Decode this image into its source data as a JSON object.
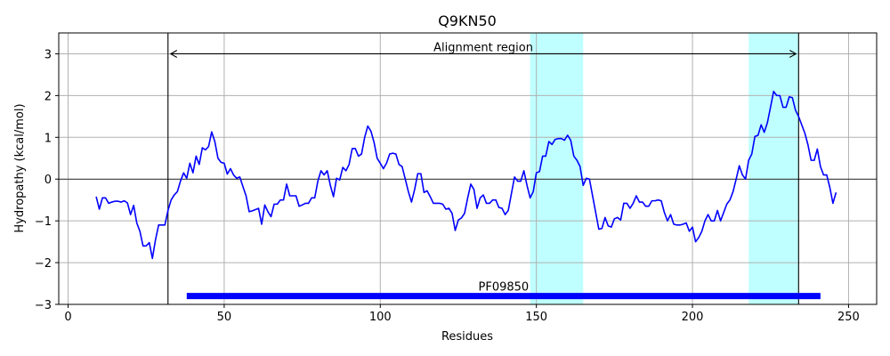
{
  "chart_data": {
    "type": "line",
    "title": "Q9KN50",
    "xlabel": "Residues",
    "ylabel": "Hydropathy (kcal/mol)",
    "xlim": [
      -3,
      259
    ],
    "ylim": [
      -3,
      3.5
    ],
    "xticks": [
      0,
      50,
      100,
      150,
      200,
      250
    ],
    "yticks": [
      -3,
      -2,
      -1,
      0,
      1,
      2,
      3
    ],
    "xtick_labels": [
      "0",
      "50",
      "100",
      "150",
      "200",
      "250"
    ],
    "ytick_labels": [
      "−3",
      "−2",
      "−1",
      "0",
      "1",
      "2",
      "3"
    ],
    "grid": true,
    "zero_line": 0,
    "series": [
      {
        "color": "#0000ff",
        "x": [
          9,
          10,
          11,
          12,
          13,
          14,
          15,
          16,
          17,
          18,
          19,
          20,
          21,
          22,
          23,
          24,
          25,
          26,
          27,
          28,
          29,
          30,
          31,
          32,
          33,
          34,
          35,
          36,
          37,
          38,
          39,
          40,
          41,
          42,
          43,
          44,
          45,
          46,
          47,
          48,
          49,
          50,
          51,
          52,
          53,
          54,
          55,
          56,
          57,
          58,
          59,
          60,
          61,
          62,
          63,
          64,
          65,
          66,
          67,
          68,
          69,
          70,
          71,
          72,
          73,
          74,
          75,
          76,
          77,
          78,
          79,
          80,
          81,
          82,
          83,
          84,
          85,
          86,
          87,
          88,
          89,
          90,
          91,
          92,
          93,
          94,
          95,
          96,
          97,
          98,
          99,
          100,
          101,
          102,
          103,
          104,
          105,
          106,
          107,
          108,
          109,
          110,
          111,
          112,
          113,
          114,
          115,
          116,
          117,
          118,
          119,
          120,
          121,
          122,
          123,
          124,
          125,
          126,
          127,
          128,
          129,
          130,
          131,
          132,
          133,
          134,
          135,
          136,
          137,
          138,
          139,
          140,
          141,
          142,
          143,
          144,
          145,
          146,
          147,
          148,
          149,
          150,
          151,
          152,
          153,
          154,
          155,
          156,
          157,
          158,
          159,
          160,
          161,
          162,
          163,
          164,
          165,
          166,
          167,
          168,
          169,
          170,
          171,
          172,
          173,
          174,
          175,
          176,
          177,
          178,
          179,
          180,
          181,
          182,
          183,
          184,
          185,
          186,
          187,
          188,
          189,
          190,
          191,
          192,
          193,
          194,
          195,
          196,
          197,
          198,
          199,
          200,
          201,
          202,
          203,
          204,
          205,
          206,
          207,
          208,
          209,
          210,
          211,
          212,
          213,
          214,
          215,
          216,
          217,
          218,
          219,
          220,
          221,
          222,
          223,
          224,
          225,
          226,
          227,
          228,
          229,
          230,
          231,
          232,
          233,
          234,
          235,
          236,
          237,
          238,
          239,
          240,
          241,
          242,
          243,
          244,
          245,
          246
        ],
        "y": [
          -0.42,
          -0.72,
          -0.45,
          -0.45,
          -0.58,
          -0.55,
          -0.53,
          -0.53,
          -0.55,
          -0.52,
          -0.57,
          -0.85,
          -0.63,
          -1.05,
          -1.25,
          -1.6,
          -1.6,
          -1.52,
          -1.9,
          -1.45,
          -1.1,
          -1.1,
          -1.1,
          -0.75,
          -0.5,
          -0.38,
          -0.3,
          -0.05,
          0.15,
          0.02,
          0.38,
          0.15,
          0.55,
          0.35,
          0.75,
          0.7,
          0.78,
          1.13,
          0.9,
          0.5,
          0.4,
          0.38,
          0.12,
          0.25,
          0.1,
          0.02,
          0.05,
          -0.18,
          -0.4,
          -0.78,
          -0.76,
          -0.73,
          -0.7,
          -1.08,
          -0.62,
          -0.78,
          -0.9,
          -0.6,
          -0.6,
          -0.5,
          -0.5,
          -0.12,
          -0.4,
          -0.4,
          -0.4,
          -0.65,
          -0.62,
          -0.58,
          -0.58,
          -0.45,
          -0.45,
          -0.05,
          0.2,
          0.1,
          0.2,
          -0.15,
          -0.42,
          0.02,
          -0.02,
          0.28,
          0.2,
          0.35,
          0.73,
          0.73,
          0.55,
          0.6,
          1.0,
          1.27,
          1.15,
          0.88,
          0.5,
          0.38,
          0.25,
          0.38,
          0.6,
          0.62,
          0.6,
          0.35,
          0.3,
          0.0,
          -0.3,
          -0.55,
          -0.25,
          0.13,
          0.13,
          -0.32,
          -0.28,
          -0.42,
          -0.58,
          -0.58,
          -0.58,
          -0.6,
          -0.72,
          -0.7,
          -0.82,
          -1.23,
          -0.98,
          -0.93,
          -0.82,
          -0.45,
          -0.12,
          -0.25,
          -0.7,
          -0.45,
          -0.38,
          -0.58,
          -0.58,
          -0.5,
          -0.5,
          -0.68,
          -0.7,
          -0.85,
          -0.75,
          -0.35,
          0.05,
          -0.05,
          -0.05,
          0.2,
          -0.15,
          -0.45,
          -0.3,
          0.15,
          0.18,
          0.55,
          0.55,
          0.9,
          0.83,
          0.95,
          0.97,
          0.97,
          0.93,
          1.05,
          0.93,
          0.55,
          0.45,
          0.3,
          -0.15,
          0.02,
          0.0,
          -0.4,
          -0.8,
          -1.2,
          -1.18,
          -0.92,
          -1.12,
          -1.15,
          -0.95,
          -0.92,
          -0.98,
          -0.58,
          -0.58,
          -0.7,
          -0.58,
          -0.4,
          -0.55,
          -0.55,
          -0.65,
          -0.65,
          -0.52,
          -0.52,
          -0.5,
          -0.52,
          -0.8,
          -1.0,
          -0.85,
          -1.08,
          -1.1,
          -1.1,
          -1.08,
          -1.05,
          -1.25,
          -1.15,
          -1.5,
          -1.4,
          -1.25,
          -1.0,
          -0.85,
          -1.0,
          -1.0,
          -0.75,
          -1.0,
          -0.8,
          -0.6,
          -0.5,
          -0.3,
          0.0,
          0.32,
          0.1,
          0.0,
          0.45,
          0.6,
          1.02,
          1.05,
          1.3,
          1.12,
          1.35,
          1.72,
          2.1,
          2.0,
          2.0,
          1.72,
          1.72,
          1.97,
          1.95,
          1.65,
          1.5,
          1.3,
          1.1,
          0.82,
          0.45,
          0.45,
          0.72,
          0.3,
          0.1,
          0.1,
          -0.2,
          -0.58,
          -0.32
        ]
      }
    ],
    "highlight_regions": [
      {
        "x_start": 148,
        "x_end": 165,
        "color": "#c0ffff"
      },
      {
        "x_start": 218,
        "x_end": 234,
        "color": "#c0ffff"
      }
    ],
    "vertical_lines": [
      32,
      234
    ],
    "alignment_arrow": {
      "x_start": 32,
      "x_end": 234,
      "y": 3.0,
      "label": "Alignment region"
    },
    "domain_bar": {
      "x_start": 38,
      "x_end": 241,
      "y": -2.8,
      "color": "#0000ff",
      "label": "PF09850"
    }
  }
}
